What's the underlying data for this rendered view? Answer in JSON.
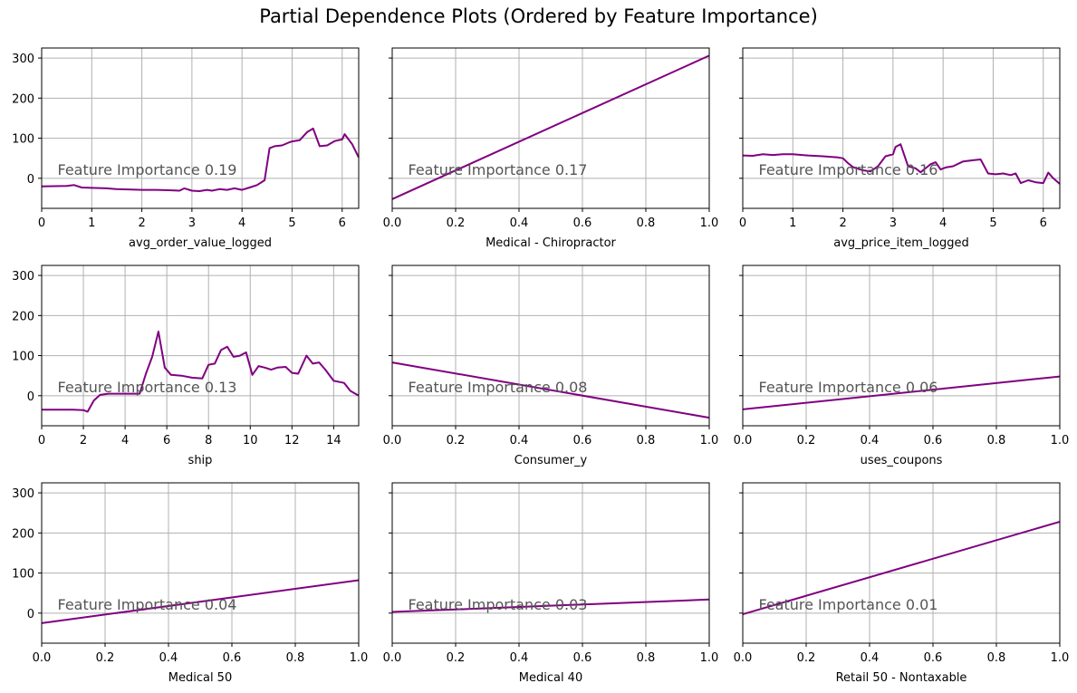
{
  "title": "Partial Dependence Plots (Ordered by Feature Importance)",
  "line_color": "#800080",
  "grid_color": "#b0b0b0",
  "annotation_color": "#555555",
  "chart_data": [
    {
      "type": "line",
      "xlabel": "avg_order_value_logged",
      "annotation": "Feature Importance 0.19",
      "xlim": [
        0,
        6.33
      ],
      "ylim": [
        -75,
        325
      ],
      "xticks": [
        0,
        1,
        2,
        3,
        4,
        5,
        6
      ],
      "xtick_labels": [
        "0",
        "1",
        "2",
        "3",
        "4",
        "5",
        "6"
      ],
      "yticks": [
        0,
        100,
        200,
        300
      ],
      "ytick_labels": [
        "0",
        "100",
        "200",
        "300"
      ],
      "show_yticklabels": true,
      "x": [
        0,
        0.5,
        0.65,
        0.8,
        1.0,
        1.3,
        1.5,
        1.8,
        2.0,
        2.3,
        2.6,
        2.75,
        2.85,
        3.0,
        3.15,
        3.3,
        3.4,
        3.55,
        3.7,
        3.85,
        4.0,
        4.15,
        4.3,
        4.45,
        4.55,
        4.65,
        4.8,
        4.95,
        5.0,
        5.15,
        5.3,
        5.42,
        5.55,
        5.7,
        5.85,
        6.0,
        6.05,
        6.2,
        6.33
      ],
      "y": [
        -20,
        -19,
        -17,
        -23,
        -24,
        -25,
        -27,
        -28,
        -29,
        -29,
        -30,
        -31,
        -25,
        -31,
        -32,
        -29,
        -31,
        -27,
        -29,
        -25,
        -29,
        -23,
        -17,
        -5,
        75,
        80,
        82,
        90,
        92,
        95,
        115,
        124,
        80,
        82,
        93,
        97,
        110,
        85,
        52
      ]
    },
    {
      "type": "line",
      "xlabel": "Medical - Chiropractor",
      "annotation": "Feature Importance 0.17",
      "xlim": [
        0,
        1
      ],
      "ylim": [
        -75,
        325
      ],
      "xticks": [
        0,
        0.2,
        0.4,
        0.6,
        0.8,
        1.0
      ],
      "xtick_labels": [
        "0.0",
        "0.2",
        "0.4",
        "0.6",
        "0.8",
        "1.0"
      ],
      "yticks": [
        0,
        100,
        200,
        300
      ],
      "ytick_labels": [
        "0",
        "100",
        "200",
        "300"
      ],
      "show_yticklabels": false,
      "x": [
        0,
        1
      ],
      "y": [
        -52,
        306
      ]
    },
    {
      "type": "line",
      "xlabel": "avg_price_item_logged",
      "annotation": "Feature Importance 0.16",
      "xlim": [
        0,
        6.33
      ],
      "ylim": [
        -75,
        325
      ],
      "xticks": [
        0,
        1,
        2,
        3,
        4,
        5,
        6
      ],
      "xtick_labels": [
        "0",
        "1",
        "2",
        "3",
        "4",
        "5",
        "6"
      ],
      "yticks": [
        0,
        100,
        200,
        300
      ],
      "ytick_labels": [
        "0",
        "100",
        "200",
        "300"
      ],
      "show_yticklabels": false,
      "x": [
        0,
        0.2,
        0.4,
        0.6,
        0.8,
        1.0,
        1.3,
        1.6,
        1.9,
        2.0,
        2.1,
        2.2,
        2.4,
        2.55,
        2.7,
        2.85,
        3.0,
        3.05,
        3.15,
        3.3,
        3.45,
        3.55,
        3.7,
        3.75,
        3.85,
        3.95,
        4.05,
        4.2,
        4.4,
        4.6,
        4.75,
        4.9,
        5.05,
        5.2,
        5.35,
        5.45,
        5.55,
        5.7,
        5.85,
        6.0,
        6.1,
        6.2,
        6.33
      ],
      "y": [
        57,
        56,
        60,
        58,
        60,
        60,
        57,
        55,
        52,
        50,
        38,
        28,
        20,
        17,
        30,
        55,
        60,
        78,
        85,
        30,
        25,
        15,
        30,
        35,
        40,
        22,
        27,
        30,
        42,
        45,
        47,
        12,
        10,
        12,
        8,
        12,
        -12,
        -5,
        -10,
        -12,
        14,
        0,
        -14
      ]
    },
    {
      "type": "line",
      "xlabel": "ship",
      "annotation": "Feature Importance 0.13",
      "xlim": [
        0,
        15.2
      ],
      "ylim": [
        -75,
        325
      ],
      "xticks": [
        0,
        2,
        4,
        6,
        8,
        10,
        12,
        14
      ],
      "xtick_labels": [
        "0",
        "2",
        "4",
        "6",
        "8",
        "10",
        "12",
        "14"
      ],
      "yticks": [
        0,
        100,
        200,
        300
      ],
      "ytick_labels": [
        "0",
        "100",
        "200",
        "300"
      ],
      "show_yticklabels": true,
      "x": [
        0,
        1.5,
        2.0,
        2.2,
        2.5,
        2.8,
        3.2,
        4.0,
        4.7,
        5.0,
        5.3,
        5.6,
        5.9,
        6.2,
        6.7,
        7.2,
        7.7,
        8.0,
        8.3,
        8.6,
        8.9,
        9.2,
        9.5,
        9.8,
        10.1,
        10.4,
        10.7,
        11.0,
        11.3,
        11.7,
        12.0,
        12.3,
        12.7,
        13.0,
        13.3,
        13.6,
        14.0,
        14.5,
        14.8,
        15.2
      ],
      "y": [
        -35,
        -35,
        -36,
        -40,
        -12,
        2,
        5,
        5,
        5,
        55,
        97,
        160,
        70,
        52,
        50,
        45,
        43,
        77,
        80,
        114,
        122,
        97,
        100,
        108,
        52,
        74,
        70,
        65,
        70,
        72,
        57,
        55,
        100,
        80,
        83,
        65,
        37,
        32,
        12,
        0
      ]
    },
    {
      "type": "line",
      "xlabel": "Consumer_y",
      "annotation": "Feature Importance 0.08",
      "xlim": [
        0,
        1
      ],
      "ylim": [
        -75,
        325
      ],
      "xticks": [
        0,
        0.2,
        0.4,
        0.6,
        0.8,
        1.0
      ],
      "xtick_labels": [
        "0.0",
        "0.2",
        "0.4",
        "0.6",
        "0.8",
        "1.0"
      ],
      "yticks": [
        0,
        100,
        200,
        300
      ],
      "ytick_labels": [
        "0",
        "100",
        "200",
        "300"
      ],
      "show_yticklabels": false,
      "x": [
        0,
        1
      ],
      "y": [
        83,
        -55
      ]
    },
    {
      "type": "line",
      "xlabel": "uses_coupons",
      "annotation": "Feature Importance 0.06",
      "xlim": [
        0,
        1
      ],
      "ylim": [
        -75,
        325
      ],
      "xticks": [
        0,
        0.2,
        0.4,
        0.6,
        0.8,
        1.0
      ],
      "xtick_labels": [
        "0.0",
        "0.2",
        "0.4",
        "0.6",
        "0.8",
        "1.0"
      ],
      "yticks": [
        0,
        100,
        200,
        300
      ],
      "ytick_labels": [
        "0",
        "100",
        "200",
        "300"
      ],
      "show_yticklabels": false,
      "x": [
        0,
        1
      ],
      "y": [
        -34,
        48
      ]
    },
    {
      "type": "line",
      "xlabel": "Medical 50",
      "annotation": "Feature Importance 0.04",
      "xlim": [
        0,
        1
      ],
      "ylim": [
        -75,
        325
      ],
      "xticks": [
        0,
        0.2,
        0.4,
        0.6,
        0.8,
        1.0
      ],
      "xtick_labels": [
        "0.0",
        "0.2",
        "0.4",
        "0.6",
        "0.8",
        "1.0"
      ],
      "yticks": [
        0,
        100,
        200,
        300
      ],
      "ytick_labels": [
        "0",
        "100",
        "200",
        "300"
      ],
      "show_yticklabels": true,
      "x": [
        0,
        1
      ],
      "y": [
        -25,
        82
      ]
    },
    {
      "type": "line",
      "xlabel": "Medical 40",
      "annotation": "Feature Importance 0.03",
      "xlim": [
        0,
        1
      ],
      "ylim": [
        -75,
        325
      ],
      "xticks": [
        0,
        0.2,
        0.4,
        0.6,
        0.8,
        1.0
      ],
      "xtick_labels": [
        "0.0",
        "0.2",
        "0.4",
        "0.6",
        "0.8",
        "1.0"
      ],
      "yticks": [
        0,
        100,
        200,
        300
      ],
      "ytick_labels": [
        "0",
        "100",
        "200",
        "300"
      ],
      "show_yticklabels": false,
      "x": [
        0,
        1
      ],
      "y": [
        3,
        34
      ]
    },
    {
      "type": "line",
      "xlabel": "Retail 50 - Nontaxable",
      "annotation": "Feature Importance 0.01",
      "xlim": [
        0,
        1
      ],
      "ylim": [
        -75,
        325
      ],
      "xticks": [
        0,
        0.2,
        0.4,
        0.6,
        0.8,
        1.0
      ],
      "xtick_labels": [
        "0.0",
        "0.2",
        "0.4",
        "0.6",
        "0.8",
        "1.0"
      ],
      "yticks": [
        0,
        100,
        200,
        300
      ],
      "ytick_labels": [
        "0",
        "100",
        "200",
        "300"
      ],
      "show_yticklabels": false,
      "x": [
        0,
        1
      ],
      "y": [
        -3,
        228
      ]
    }
  ]
}
